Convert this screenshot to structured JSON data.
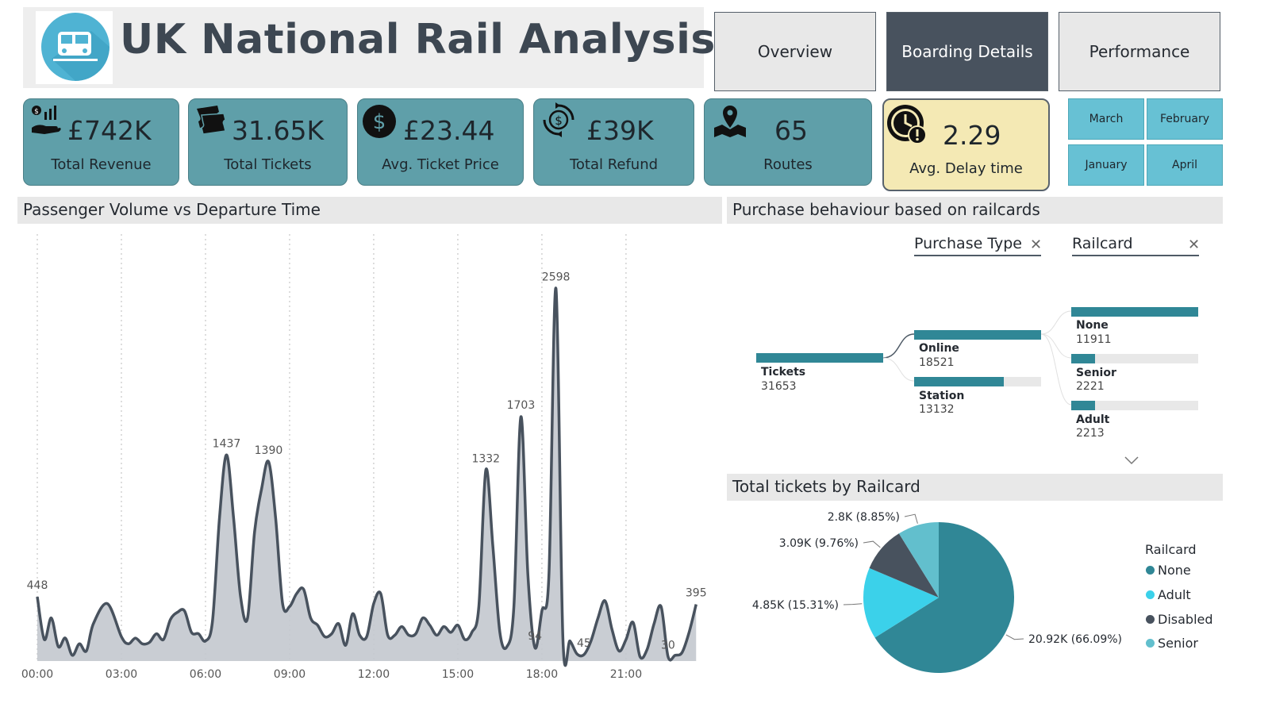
{
  "header": {
    "title": "UK National Rail Analysis",
    "logo_icon": "train-logo-icon"
  },
  "nav": [
    {
      "label": "Overview",
      "active": false
    },
    {
      "label": "Boarding Details",
      "active": true
    },
    {
      "label": "Performance",
      "active": false
    }
  ],
  "kpis": [
    {
      "value": "£742K",
      "label": "Total Revenue",
      "icon": "revenue-hand-icon"
    },
    {
      "value": "31.65K",
      "label": "Total Tickets",
      "icon": "tickets-icon"
    },
    {
      "value": "£23.44",
      "label": "Avg. Ticket Price",
      "icon": "dollar-circle-icon"
    },
    {
      "value": "£39K",
      "label": "Total Refund",
      "icon": "refund-cycle-icon"
    },
    {
      "value": "65",
      "label": "Routes",
      "icon": "map-pin-icon"
    },
    {
      "value": "2.29",
      "label": "Avg. Delay time",
      "icon": "clock-alert-icon"
    }
  ],
  "months": [
    "March",
    "February",
    "January",
    "April"
  ],
  "colors": {
    "teal": "#308796",
    "cyan": "#3bd1ea",
    "dark": "#48525e",
    "light_teal": "#62bfcd",
    "kpi_card": "#5f9fa9",
    "delay_card": "#f4e9b4",
    "month_button": "#67c1d4"
  },
  "line_section": {
    "title": "Passenger Volume vs Departure Time"
  },
  "decomp_section": {
    "title": "Purchase behaviour based on railcards",
    "filters": [
      "Purchase Type",
      "Railcard"
    ],
    "root": {
      "label": "Tickets",
      "value": "31653"
    },
    "level1": [
      {
        "label": "Online",
        "value": "18521",
        "share": 1.0
      },
      {
        "label": "Station",
        "value": "13132",
        "share": 0.709
      }
    ],
    "level2": [
      {
        "label": "None",
        "value": "11911",
        "share": 1.0
      },
      {
        "label": "Senior",
        "value": "2221",
        "share": 0.186
      },
      {
        "label": "Adult",
        "value": "2213",
        "share": 0.186
      }
    ]
  },
  "pie_section": {
    "title": "Total tickets by Railcard"
  },
  "chart_data": [
    {
      "type": "area",
      "title": "Passenger Volume vs Departure Time",
      "x_ticks": [
        "00:00",
        "03:00",
        "06:00",
        "09:00",
        "12:00",
        "15:00",
        "18:00",
        "21:00"
      ],
      "x_range_hours": [
        0,
        24
      ],
      "y_range": [
        0,
        2700
      ],
      "grid": "vertical dotted",
      "points": [
        [
          0.0,
          448
        ],
        [
          0.25,
          150
        ],
        [
          0.5,
          300
        ],
        [
          0.75,
          100
        ],
        [
          1.0,
          160
        ],
        [
          1.25,
          40
        ],
        [
          1.5,
          120
        ],
        [
          1.75,
          70
        ],
        [
          2.0,
          260
        ],
        [
          2.5,
          400
        ],
        [
          3.0,
          170
        ],
        [
          3.25,
          120
        ],
        [
          3.5,
          160
        ],
        [
          3.75,
          120
        ],
        [
          4.0,
          130
        ],
        [
          4.25,
          190
        ],
        [
          4.5,
          150
        ],
        [
          4.75,
          290
        ],
        [
          5.0,
          340
        ],
        [
          5.25,
          350
        ],
        [
          5.5,
          200
        ],
        [
          5.75,
          190
        ],
        [
          6.0,
          140
        ],
        [
          6.25,
          280
        ],
        [
          6.5,
          1000
        ],
        [
          6.75,
          1437
        ],
        [
          7.0,
          1000
        ],
        [
          7.25,
          450
        ],
        [
          7.5,
          300
        ],
        [
          7.75,
          900
        ],
        [
          8.0,
          1200
        ],
        [
          8.25,
          1390
        ],
        [
          8.5,
          1000
        ],
        [
          8.75,
          400
        ],
        [
          9.0,
          380
        ],
        [
          9.25,
          470
        ],
        [
          9.5,
          500
        ],
        [
          9.75,
          300
        ],
        [
          10.0,
          250
        ],
        [
          10.25,
          170
        ],
        [
          10.5,
          190
        ],
        [
          10.75,
          260
        ],
        [
          11.0,
          110
        ],
        [
          11.25,
          330
        ],
        [
          11.5,
          180
        ],
        [
          11.75,
          170
        ],
        [
          12.0,
          400
        ],
        [
          12.25,
          470
        ],
        [
          12.5,
          180
        ],
        [
          12.75,
          180
        ],
        [
          13.0,
          240
        ],
        [
          13.25,
          180
        ],
        [
          13.5,
          190
        ],
        [
          13.75,
          300
        ],
        [
          14.0,
          250
        ],
        [
          14.25,
          180
        ],
        [
          14.5,
          240
        ],
        [
          14.75,
          200
        ],
        [
          15.0,
          250
        ],
        [
          15.25,
          150
        ],
        [
          15.5,
          200
        ],
        [
          15.75,
          380
        ],
        [
          16.0,
          1332
        ],
        [
          16.25,
          800
        ],
        [
          16.5,
          200
        ],
        [
          16.75,
          100
        ],
        [
          17.0,
          380
        ],
        [
          17.25,
          1703
        ],
        [
          17.5,
          600
        ],
        [
          17.75,
          94
        ],
        [
          18.0,
          350
        ],
        [
          18.25,
          600
        ],
        [
          18.5,
          2598
        ],
        [
          18.75,
          150
        ],
        [
          19.0,
          140
        ],
        [
          19.25,
          50
        ],
        [
          19.5,
          45
        ],
        [
          19.75,
          140
        ],
        [
          20.0,
          300
        ],
        [
          20.25,
          420
        ],
        [
          20.5,
          220
        ],
        [
          20.75,
          70
        ],
        [
          21.0,
          150
        ],
        [
          21.25,
          270
        ],
        [
          21.5,
          30
        ],
        [
          21.75,
          80
        ],
        [
          22.0,
          260
        ],
        [
          22.25,
          380
        ],
        [
          22.5,
          30
        ],
        [
          22.75,
          40
        ],
        [
          23.0,
          60
        ],
        [
          23.25,
          200
        ],
        [
          23.5,
          395
        ]
      ],
      "data_labels": [
        {
          "x": 0.0,
          "y": 448,
          "text": "448"
        },
        {
          "x": 6.75,
          "y": 1437,
          "text": "1437"
        },
        {
          "x": 8.25,
          "y": 1390,
          "text": "1390"
        },
        {
          "x": 16.0,
          "y": 1332,
          "text": "1332"
        },
        {
          "x": 17.25,
          "y": 1703,
          "text": "1703"
        },
        {
          "x": 18.5,
          "y": 2598,
          "text": "2598"
        },
        {
          "x": 17.75,
          "y": 94,
          "text": "94"
        },
        {
          "x": 19.5,
          "y": 45,
          "text": "45"
        },
        {
          "x": 22.5,
          "y": 30,
          "text": "30"
        },
        {
          "x": 23.5,
          "y": 395,
          "text": "395"
        }
      ]
    },
    {
      "type": "pie",
      "title": "Total tickets by Railcard",
      "legend_title": "Railcard",
      "legend_position": "right",
      "slices": [
        {
          "name": "None",
          "value": 20.92,
          "label": "20.92K (66.09%)",
          "color": "#308796"
        },
        {
          "name": "Adult",
          "value": 4.85,
          "label": "4.85K (15.31%)",
          "color": "#3bd1ea"
        },
        {
          "name": "Disabled",
          "value": 3.09,
          "label": "3.09K (9.76%)",
          "color": "#48525e"
        },
        {
          "name": "Senior",
          "value": 2.8,
          "label": "2.8K (8.85%)",
          "color": "#62bfcd"
        }
      ]
    }
  ]
}
